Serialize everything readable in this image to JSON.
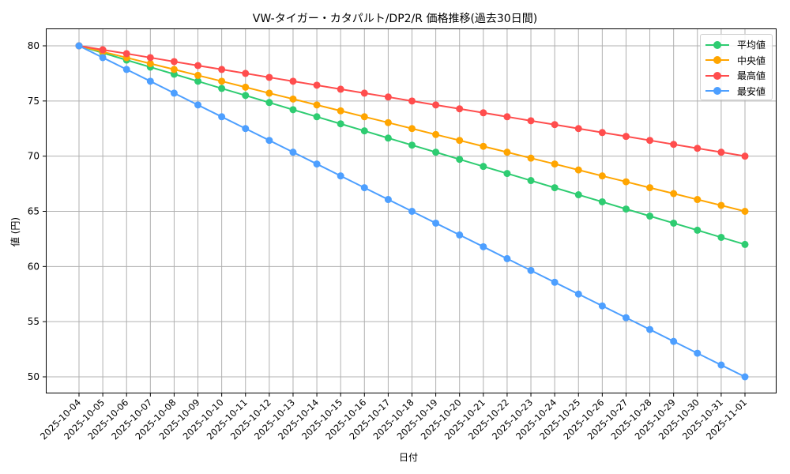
{
  "chart_data": {
    "type": "line",
    "title": "VW-タイガー・カタパルト/DP2/R 価格推移(過去30日間)",
    "xlabel": "日付",
    "ylabel": "値 (円)",
    "ylim": [
      48.4,
      81.6
    ],
    "yticks": [
      50,
      55,
      60,
      65,
      70,
      75,
      80
    ],
    "grid": true,
    "legend_position": "upper right",
    "x": [
      "2025-10-04",
      "2025-10-05",
      "2025-10-06",
      "2025-10-07",
      "2025-10-08",
      "2025-10-09",
      "2025-10-10",
      "2025-10-11",
      "2025-10-12",
      "2025-10-13",
      "2025-10-14",
      "2025-10-15",
      "2025-10-16",
      "2025-10-17",
      "2025-10-18",
      "2025-10-19",
      "2025-10-20",
      "2025-10-21",
      "2025-10-22",
      "2025-10-23",
      "2025-10-24",
      "2025-10-25",
      "2025-10-26",
      "2025-10-27",
      "2025-10-28",
      "2025-10-29",
      "2025-10-30",
      "2025-10-31",
      "2025-11-01"
    ],
    "series": [
      {
        "name": "平均値",
        "color": "#2ecc71",
        "values": [
          80.0,
          79.36,
          78.71,
          78.07,
          77.43,
          76.79,
          76.14,
          75.5,
          74.86,
          74.21,
          73.57,
          72.93,
          72.29,
          71.64,
          71.0,
          70.36,
          69.71,
          69.07,
          68.43,
          67.79,
          67.14,
          66.5,
          65.86,
          65.21,
          64.57,
          63.93,
          63.29,
          62.64,
          62.0
        ]
      },
      {
        "name": "中央値",
        "color": "#ffa500",
        "values": [
          80.0,
          79.46,
          78.93,
          78.39,
          77.86,
          77.32,
          76.79,
          76.25,
          75.71,
          75.18,
          74.64,
          74.11,
          73.57,
          73.04,
          72.5,
          71.96,
          71.43,
          70.89,
          70.36,
          69.82,
          69.29,
          68.75,
          68.21,
          67.68,
          67.14,
          66.61,
          66.07,
          65.54,
          65.0
        ]
      },
      {
        "name": "最高値",
        "color": "#ff4d4d",
        "values": [
          80.0,
          79.64,
          79.29,
          78.93,
          78.57,
          78.21,
          77.86,
          77.5,
          77.14,
          76.79,
          76.43,
          76.07,
          75.71,
          75.36,
          75.0,
          74.64,
          74.29,
          73.93,
          73.57,
          73.21,
          72.86,
          72.5,
          72.14,
          71.79,
          71.43,
          71.07,
          70.71,
          70.36,
          70.0
        ]
      },
      {
        "name": "最安値",
        "color": "#4d9fff",
        "values": [
          80.0,
          78.93,
          77.86,
          76.79,
          75.71,
          74.64,
          73.57,
          72.5,
          71.43,
          70.36,
          69.29,
          68.21,
          67.14,
          66.07,
          65.0,
          63.93,
          62.86,
          61.79,
          60.71,
          59.64,
          58.57,
          57.5,
          56.43,
          55.36,
          54.29,
          53.21,
          52.14,
          51.07,
          50.0
        ]
      }
    ]
  },
  "legend": {
    "items": [
      {
        "label": "平均値",
        "color": "#2ecc71"
      },
      {
        "label": "中央値",
        "color": "#ffa500"
      },
      {
        "label": "最高値",
        "color": "#ff4d4d"
      },
      {
        "label": "最安値",
        "color": "#4d9fff"
      }
    ]
  }
}
